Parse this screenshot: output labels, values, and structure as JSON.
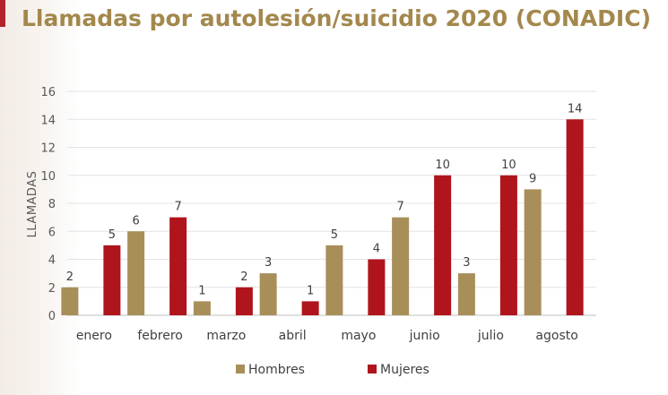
{
  "title": "Llamadas por autolesión/suicidio 2020 (CONADIC)",
  "chart_data": {
    "type": "bar",
    "categories": [
      "enero",
      "febrero",
      "marzo",
      "abril",
      "mayo",
      "junio",
      "julio",
      "agosto"
    ],
    "series": [
      {
        "name": "Hombres",
        "color": "#a88f5a",
        "values": [
          2,
          6,
          1,
          3,
          5,
          7,
          3,
          9
        ]
      },
      {
        "name": "Mujeres",
        "color": "#b0141c",
        "values": [
          5,
          7,
          2,
          1,
          4,
          10,
          10,
          14
        ]
      }
    ],
    "ylabel": "LLAMADAS",
    "ylim": [
      0,
      16
    ],
    "yticks": [
      0,
      2,
      4,
      6,
      8,
      10,
      12,
      14,
      16
    ],
    "grid": true,
    "legend_position": "bottom",
    "data_labels": true
  }
}
